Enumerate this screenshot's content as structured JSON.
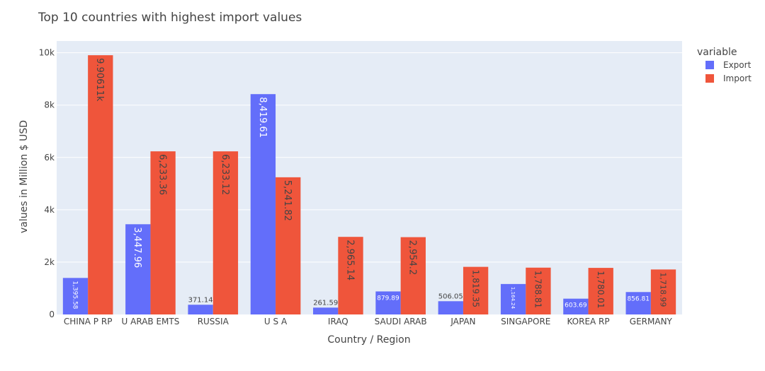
{
  "chart_data": {
    "type": "bar",
    "title": "Top 10 countries with highest import values",
    "xlabel": "Country / Region",
    "ylabel": "values in Million $ USD",
    "categories": [
      "CHINA P RP",
      "U ARAB EMTS",
      "RUSSIA",
      "U S A",
      "IRAQ",
      "SAUDI ARAB",
      "JAPAN",
      "SINGAPORE",
      "KOREA RP",
      "GERMANY"
    ],
    "series": [
      {
        "name": "Export",
        "color": "#636efa",
        "values": [
          1395.58,
          3447.96,
          371.14,
          8419.61,
          261.59,
          879.89,
          506.05,
          1164.24,
          603.69,
          856.81
        ],
        "labels": [
          "1,395.58",
          "3,447.96",
          "371.14",
          "8,419.61",
          "261.59",
          "879.89",
          "506.05",
          "1,164.24",
          "603.69",
          "856.81"
        ]
      },
      {
        "name": "Import",
        "color": "#ef553b",
        "values": [
          9906.11,
          6233.36,
          6233.12,
          5241.82,
          2965.14,
          2954.2,
          1819.35,
          1788.81,
          1780.01,
          1718.99
        ],
        "labels": [
          "9.90611k",
          "6,233.36",
          "6,233.12",
          "5,241.82",
          "2,965.14",
          "2,954.2",
          "1,819.35",
          "1,788.81",
          "1,780.01",
          "1,718.99"
        ]
      }
    ],
    "ylim": [
      0,
      10450
    ],
    "yticks": [
      0,
      2000,
      4000,
      6000,
      8000,
      10000
    ],
    "ytick_labels": [
      "0",
      "2k",
      "4k",
      "6k",
      "8k",
      "10k"
    ],
    "legend": {
      "title": "variable",
      "position": "top-right"
    },
    "grid": true,
    "plot_background": "#e5ecf6"
  }
}
